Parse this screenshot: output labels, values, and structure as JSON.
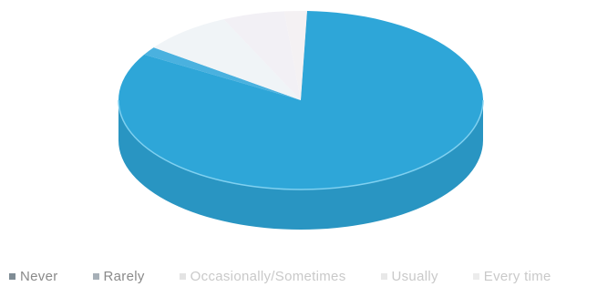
{
  "chart_data": {
    "type": "pie",
    "style": "3d",
    "title": "",
    "slices": [
      {
        "label": "Never",
        "value": 83.0,
        "color": "#2ea6d8"
      },
      {
        "label": "Rarely",
        "value": 1.5,
        "color": "#36a9dc"
      },
      {
        "label": "Occasionally/Sometimes",
        "value": 8.0,
        "color": "#eef3f6"
      },
      {
        "label": "Usually",
        "value": 5.5,
        "color": "#f1eef4"
      },
      {
        "label": "Every time",
        "value": 2.0,
        "color": "#f3f0f2"
      }
    ],
    "legend_position": "bottom"
  },
  "legend": {
    "items": [
      {
        "label": "Never",
        "color": "#7f8c95"
      },
      {
        "label": "Rarely",
        "color": "#a7b0b8"
      },
      {
        "label": "Occasionally/Sometimes",
        "color": "#e3e3e3"
      },
      {
        "label": "Usually",
        "color": "#e8e8e8"
      },
      {
        "label": "Every time",
        "color": "#ececec"
      }
    ]
  }
}
